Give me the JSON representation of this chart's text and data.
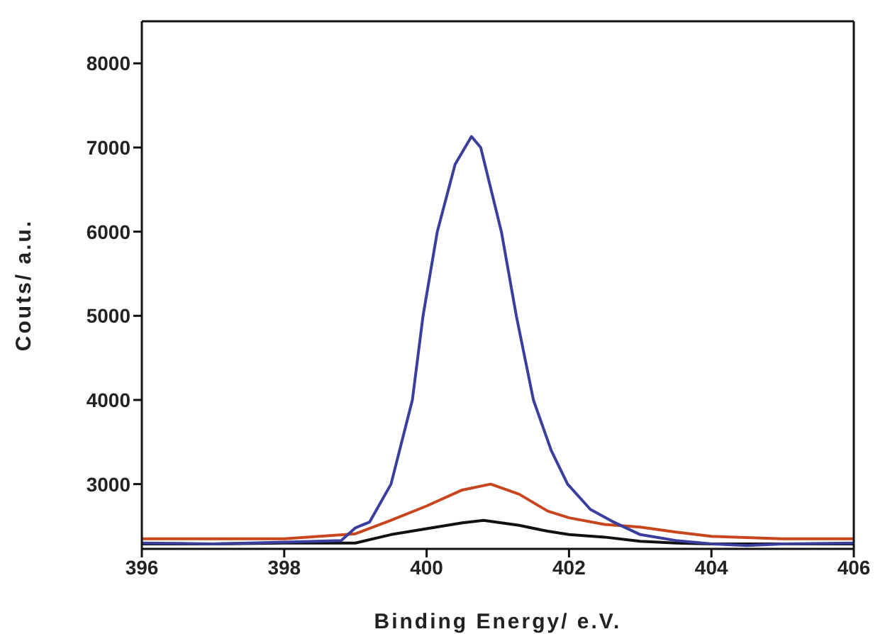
{
  "chart_data": {
    "type": "line",
    "xlabel": "Binding Energy/ e.V.",
    "ylabel": "Couts/ a.u.",
    "xlim": [
      396,
      406
    ],
    "xticks": [
      396,
      398,
      400,
      402,
      404,
      406
    ],
    "ylim": [
      2230,
      8500
    ],
    "yticks": [
      3000,
      4000,
      5000,
      6000,
      7000,
      8000
    ],
    "marker": "none",
    "line_style": "solid",
    "series": [
      {
        "color": "#c8461e",
        "x": [
          396,
          397,
          398,
          399,
          399.5,
          400,
          400.5,
          400.9,
          401.3,
          401.7,
          402,
          402.5,
          403,
          403.5,
          404,
          405,
          406
        ],
        "values": [
          2350,
          2350,
          2350,
          2410,
          2570,
          2740,
          2930,
          3000,
          2880,
          2680,
          2600,
          2520,
          2490,
          2430,
          2380,
          2350,
          2350
        ]
      },
      {
        "color": "#111111",
        "x": [
          396,
          397,
          398,
          399,
          399.5,
          400,
          400.5,
          400.8,
          401.3,
          401.7,
          402,
          402.5,
          403,
          403.5,
          404,
          405,
          406
        ],
        "values": [
          2290,
          2290,
          2300,
          2300,
          2400,
          2470,
          2540,
          2570,
          2510,
          2440,
          2400,
          2370,
          2320,
          2300,
          2290,
          2290,
          2290
        ]
      },
      {
        "color": "#3a3f9e",
        "x": [
          396,
          397,
          398,
          398.8,
          399,
          399.2,
          399.5,
          399.8,
          399.95,
          400.15,
          400.4,
          400.63,
          400.76,
          401.05,
          401.26,
          401.5,
          401.75,
          401.98,
          402.3,
          402.6,
          403,
          403.5,
          404,
          404.5,
          405,
          406
        ],
        "values": [
          2300,
          2290,
          2310,
          2330,
          2480,
          2550,
          3000,
          4000,
          5000,
          6000,
          6800,
          7130,
          7000,
          6000,
          5000,
          4000,
          3400,
          3000,
          2700,
          2560,
          2400,
          2330,
          2290,
          2270,
          2290,
          2300
        ]
      }
    ]
  }
}
